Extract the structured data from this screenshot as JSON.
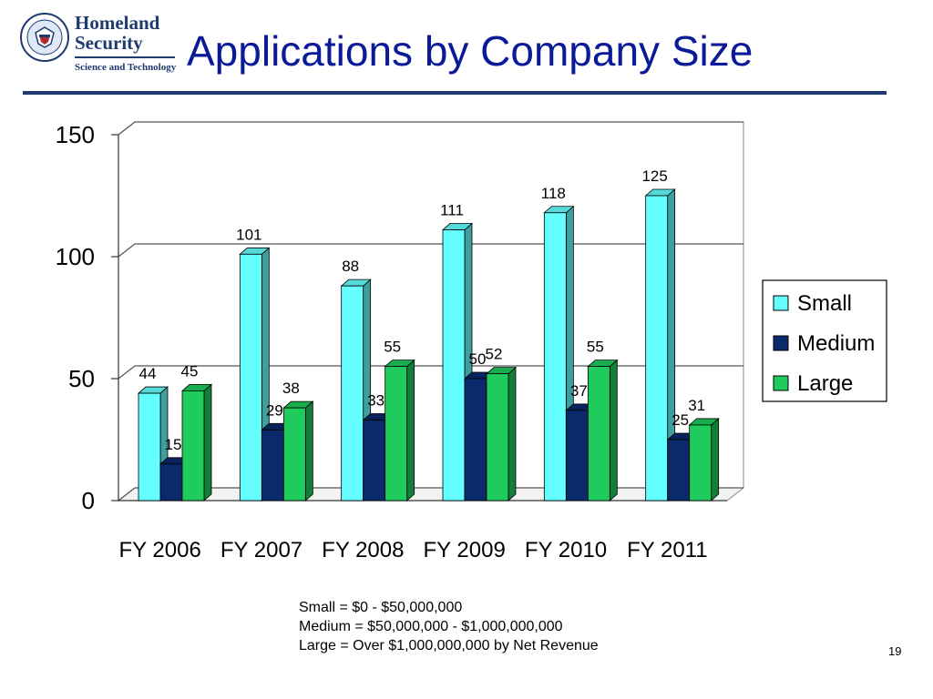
{
  "header": {
    "logo_line1": "Homeland",
    "logo_line2": "Security",
    "logo_line3": "Science and Technology",
    "title": "Applications by Company Size"
  },
  "chart_data": {
    "type": "bar",
    "style": "3d-clustered",
    "categories": [
      "FY 2006",
      "FY 2007",
      "FY 2008",
      "FY 2009",
      "FY 2010",
      "FY 2011"
    ],
    "series": [
      {
        "name": "Small",
        "values": [
          44,
          101,
          88,
          111,
          118,
          125
        ],
        "color": "#66ffff"
      },
      {
        "name": "Medium",
        "values": [
          15,
          29,
          33,
          50,
          37,
          25
        ],
        "color": "#0b2a6b"
      },
      {
        "name": "Large",
        "values": [
          45,
          38,
          55,
          52,
          55,
          31
        ],
        "color": "#1ecb5c"
      }
    ],
    "ylim": [
      0,
      150
    ],
    "yticks": [
      0,
      50,
      100,
      150
    ],
    "grid": true,
    "legend_position": "right",
    "data_labels": true
  },
  "notes": {
    "small": "Small = $0 - $50,000,000",
    "medium": "Medium = $50,000,000 - $1,000,000,000",
    "large": "Large = Over $1,000,000,000 by Net Revenue"
  },
  "page_number": "19"
}
